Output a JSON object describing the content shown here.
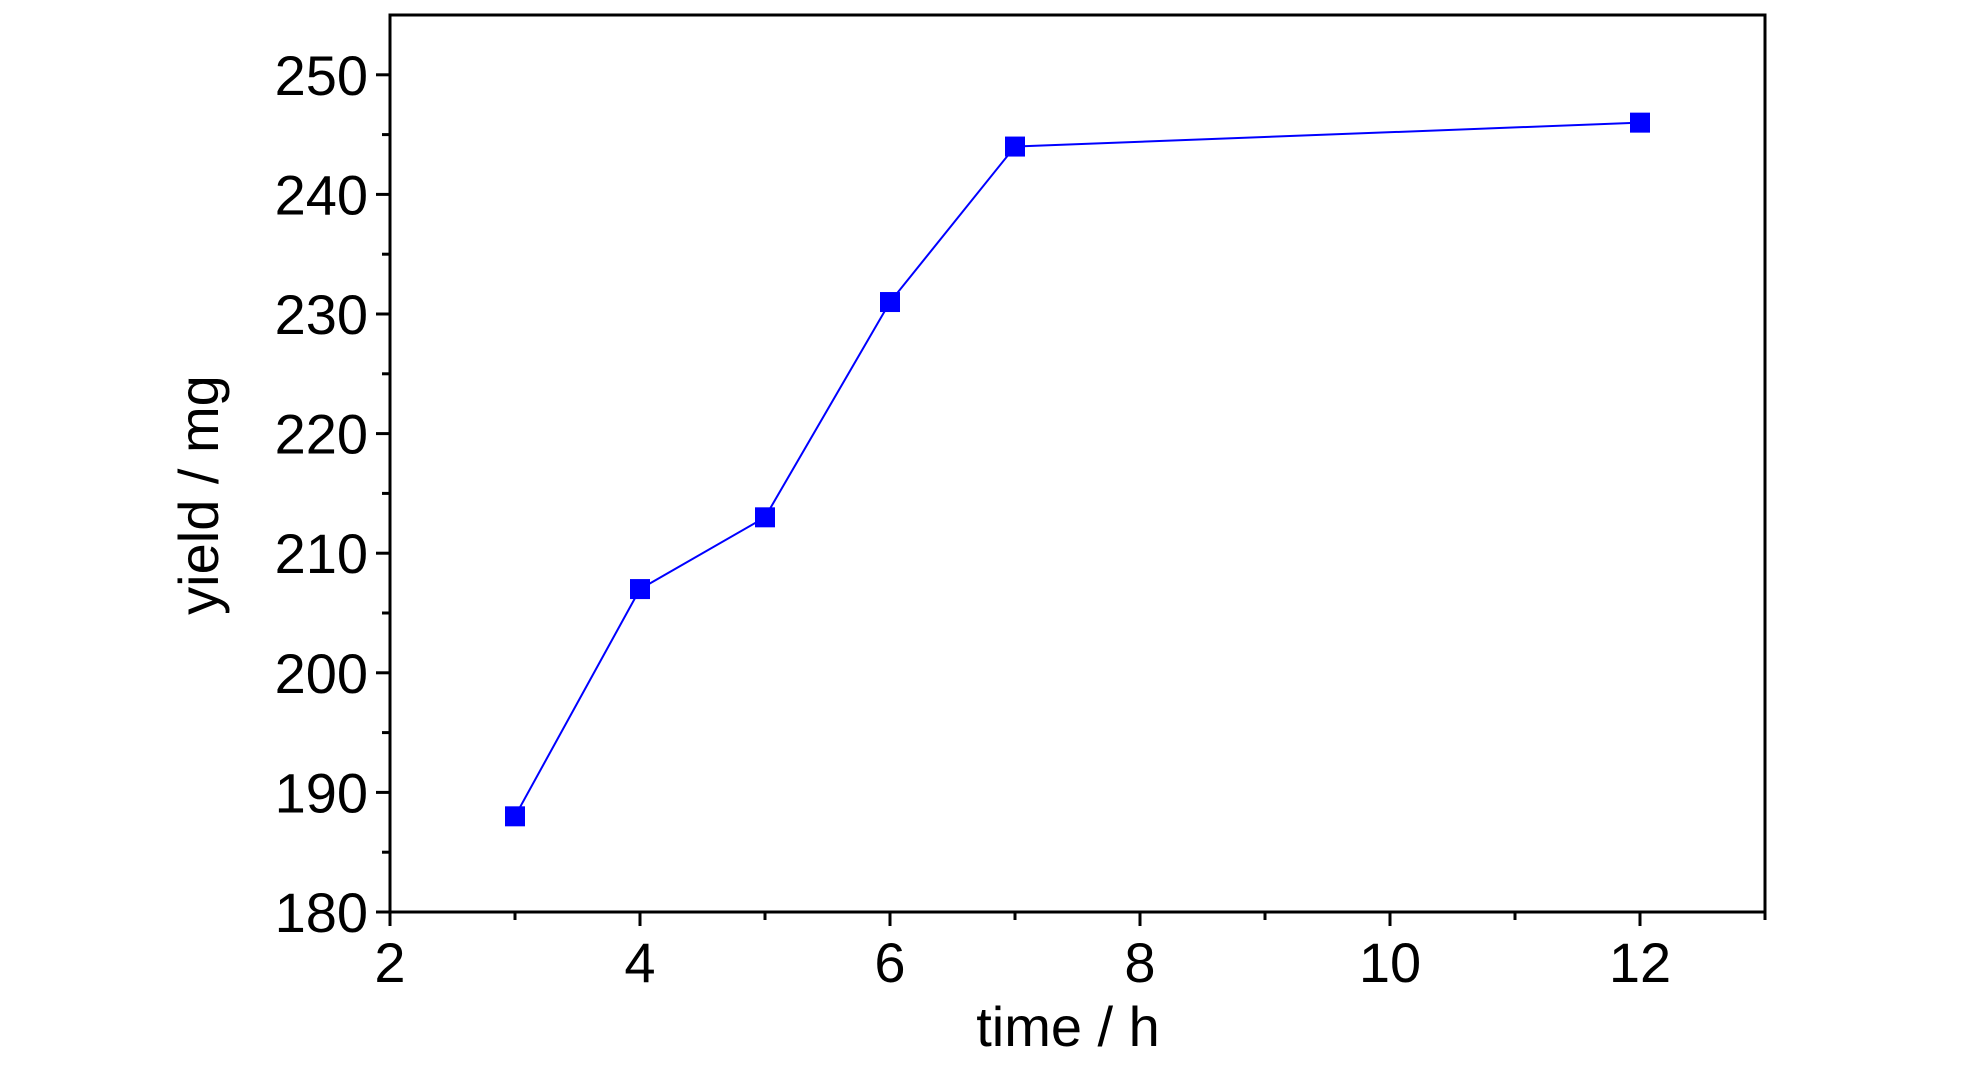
{
  "chart_data": {
    "type": "line",
    "title": "",
    "xlabel": "time / h",
    "ylabel": "yield / mg",
    "xlim": [
      2,
      13
    ],
    "ylim": [
      180,
      255
    ],
    "x_ticks": [
      2,
      4,
      6,
      8,
      10,
      12
    ],
    "x_tick_labels": [
      "2",
      "4",
      "6",
      "8",
      "10",
      "12"
    ],
    "x_minor_ticks": [
      3,
      5,
      7,
      9,
      11,
      13
    ],
    "y_ticks": [
      180,
      190,
      200,
      210,
      220,
      230,
      240,
      250
    ],
    "y_tick_labels": [
      "180",
      "190",
      "200",
      "210",
      "220",
      "230",
      "240",
      "250"
    ],
    "y_minor_ticks": [
      185,
      195,
      205,
      215,
      225,
      235,
      245
    ],
    "grid": false,
    "legend": "none",
    "series": [
      {
        "marker": "square",
        "color": "#0000ff",
        "x": [
          3,
          4,
          5,
          6,
          7,
          12
        ],
        "y": [
          188,
          207,
          213,
          231,
          244,
          246
        ]
      }
    ]
  }
}
